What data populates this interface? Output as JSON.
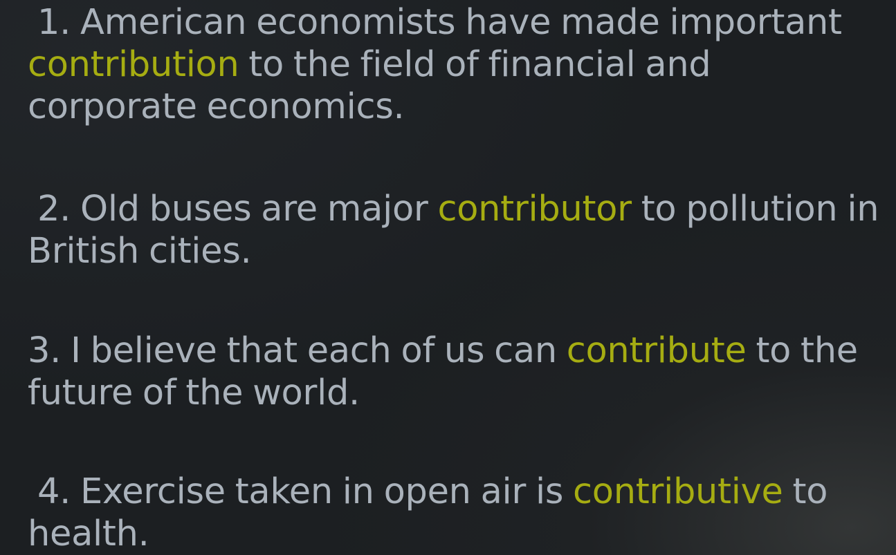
{
  "sentences": [
    {
      "number": "1.",
      "before": "American economists have made important",
      "highlight": "contribution",
      "after": "to the field of financial and corporate economics."
    },
    {
      "number": "2.",
      "before": "Old buses are major",
      "highlight": "contributor",
      "after": "to pollution in British cities."
    },
    {
      "number": "3.",
      "before": "I believe that each of us can",
      "highlight": "contribute",
      "after": "to the future of the world."
    },
    {
      "number": "4.",
      "before": "Exercise taken in open air is",
      "highlight": "contributive",
      "after": "to health."
    }
  ],
  "colors": {
    "background": "#1c1f22",
    "text": "#aab2bb",
    "highlight": "#a6ad12"
  }
}
